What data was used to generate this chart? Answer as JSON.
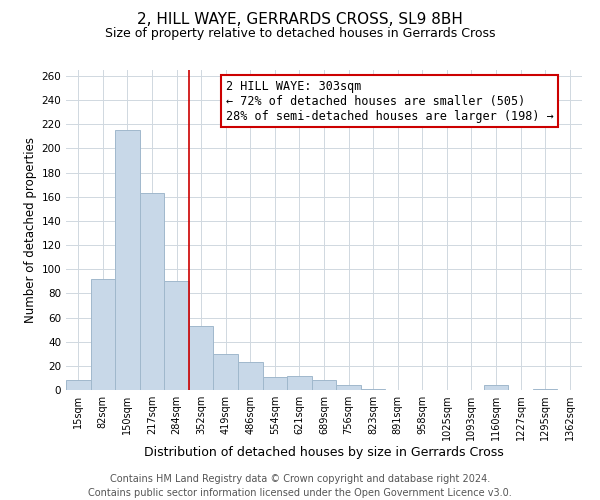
{
  "title": "2, HILL WAYE, GERRARDS CROSS, SL9 8BH",
  "subtitle": "Size of property relative to detached houses in Gerrards Cross",
  "xlabel": "Distribution of detached houses by size in Gerrards Cross",
  "ylabel": "Number of detached properties",
  "bar_labels": [
    "15sqm",
    "82sqm",
    "150sqm",
    "217sqm",
    "284sqm",
    "352sqm",
    "419sqm",
    "486sqm",
    "554sqm",
    "621sqm",
    "689sqm",
    "756sqm",
    "823sqm",
    "891sqm",
    "958sqm",
    "1025sqm",
    "1093sqm",
    "1160sqm",
    "1227sqm",
    "1295sqm",
    "1362sqm"
  ],
  "bar_values": [
    8,
    92,
    215,
    163,
    90,
    53,
    30,
    23,
    11,
    12,
    8,
    4,
    1,
    0,
    0,
    0,
    0,
    4,
    0,
    1,
    0
  ],
  "bar_color": "#c8d8e8",
  "bar_edge_color": "#a0b8cc",
  "ylim": [
    0,
    265
  ],
  "yticks": [
    0,
    20,
    40,
    60,
    80,
    100,
    120,
    140,
    160,
    180,
    200,
    220,
    240,
    260
  ],
  "vline_x_index": 4.5,
  "vline_color": "#cc0000",
  "annotation_box_text": "2 HILL WAYE: 303sqm\n← 72% of detached houses are smaller (505)\n28% of semi-detached houses are larger (198) →",
  "annotation_box_edge_color": "#cc0000",
  "annotation_fontsize": 8.5,
  "title_fontsize": 11,
  "subtitle_fontsize": 9,
  "footer_text": "Contains HM Land Registry data © Crown copyright and database right 2024.\nContains public sector information licensed under the Open Government Licence v3.0.",
  "footer_fontsize": 7,
  "background_color": "#ffffff",
  "grid_color": "#d0d8e0"
}
